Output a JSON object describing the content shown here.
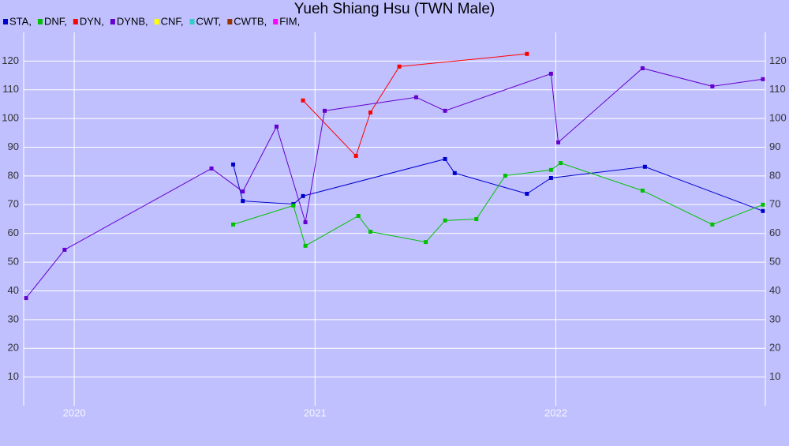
{
  "chart_data": {
    "type": "line",
    "title": "Yueh Shiang Hsu (TWN Male)",
    "xlim": [
      2019.79,
      2022.87
    ],
    "xticks": [
      2020,
      2021,
      2022
    ],
    "ylim": [
      0,
      130
    ],
    "yticks": [
      10,
      20,
      30,
      40,
      50,
      60,
      70,
      80,
      90,
      100,
      110,
      120
    ],
    "grid": true,
    "series": [
      {
        "name": "STA,",
        "color": "#0000cc",
        "x": [
          2020.66,
          2020.7,
          2020.91,
          2020.95,
          2021.54,
          2021.58,
          2021.88,
          2021.98,
          2022.37,
          2022.86
        ],
        "values": [
          84.0,
          71.3,
          70.2,
          73.0,
          85.9,
          81.0,
          73.8,
          79.3,
          83.2,
          67.8
        ]
      },
      {
        "name": "DNF,",
        "color": "#00c000",
        "x": [
          2020.66,
          2020.91,
          2020.96,
          2021.18,
          2021.23,
          2021.46,
          2021.54,
          2021.67,
          2021.79,
          2021.98,
          2022.02,
          2022.36,
          2022.65,
          2022.86
        ],
        "values": [
          63.1,
          69.7,
          55.7,
          66.1,
          60.6,
          57.0,
          64.5,
          65.0,
          80.1,
          82.1,
          84.5,
          74.9,
          63.1,
          70.0
        ]
      },
      {
        "name": "DYN,",
        "color": "#ff0000",
        "x": [
          2020.95,
          2021.17,
          2021.23,
          2021.35,
          2021.88
        ],
        "values": [
          106.3,
          87.0,
          102.1,
          118.1,
          122.5
        ]
      },
      {
        "name": "DYNB,",
        "color": "#6600cc",
        "x": [
          2019.8,
          2019.96,
          2020.57,
          2020.7,
          2020.84,
          2020.96,
          2021.04,
          2021.42,
          2021.54,
          2021.98,
          2022.01,
          2022.36,
          2022.65,
          2022.86
        ],
        "values": [
          37.5,
          54.3,
          82.6,
          74.6,
          97.2,
          63.9,
          102.7,
          107.4,
          102.7,
          115.6,
          91.7,
          117.5,
          111.2,
          113.7
        ]
      },
      {
        "name": "CNF,",
        "color": "#ffff00",
        "x": [],
        "values": []
      },
      {
        "name": "CWT,",
        "color": "#33cccc",
        "x": [],
        "values": []
      },
      {
        "name": "CWTB,",
        "color": "#993300",
        "x": [],
        "values": []
      },
      {
        "name": "FIM,",
        "color": "#ff00ff",
        "x": [],
        "values": []
      }
    ]
  }
}
